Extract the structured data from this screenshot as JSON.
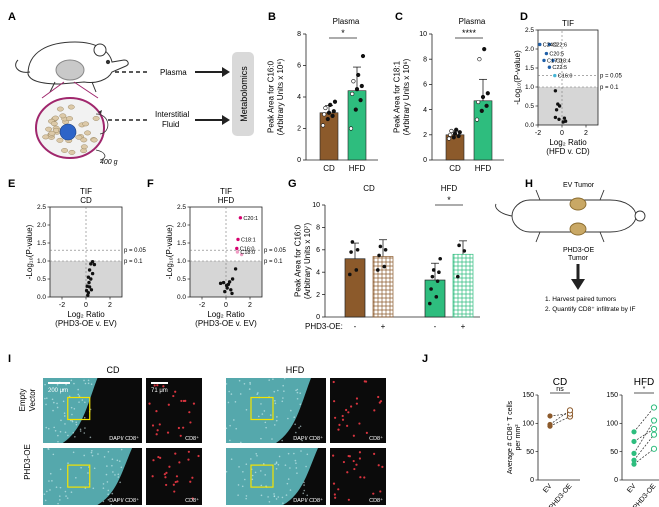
{
  "panel_letters": [
    "A",
    "B",
    "C",
    "D",
    "E",
    "F",
    "G",
    "H",
    "I",
    "J"
  ],
  "colors": {
    "cd": "#8c5a2b",
    "hfd": "#2ebd7e",
    "grey": "#d6d6d6",
    "magenta": "#d6006e",
    "blue": "#1f5fa8",
    "cyan": "#46b5d6",
    "red": "#d8343f",
    "tissue": "#63c4c9"
  },
  "panel_a": {
    "plasma": "Plasma",
    "interstitial": "Interstitial\nFluid",
    "spin": "400 g",
    "metabolomics": "Metabolomics"
  },
  "panel_h": {
    "ev_tumor": "EV Tumor",
    "phd3_tumor": "PHD3-OE\nTumor",
    "step1": "1. Harvest paired tumors",
    "step2": "2. Quantify CD8⁺ infiltrate by IF"
  },
  "panel_i": {
    "col_cd": "CD",
    "col_hfd": "HFD",
    "row1": "Empty\nVector",
    "row2": "PHD3-OE",
    "scale1": "200 μm",
    "scale2": "71 μm",
    "label_merge": "DAPI/ CD8⁺",
    "label_cd8": "CD8⁺"
  },
  "chart_data": [
    {
      "panel": "B",
      "type": "bar",
      "title": "Plasma",
      "ylabel": "Peak Area for C16:0\n(Arbitrary Units x 10⁶)",
      "categories": [
        "CD",
        "HFD"
      ],
      "values": [
        3.0,
        4.4
      ],
      "errors": [
        0.45,
        1.5
      ],
      "ylim": [
        0,
        8
      ],
      "yticks": [
        0,
        2,
        4,
        6,
        8
      ],
      "significance": "*",
      "points": [
        [
          2.2,
          2.6,
          2.8,
          2.9,
          3.0,
          3.1,
          3.3,
          3.5,
          3.7
        ],
        [
          2.0,
          3.2,
          3.8,
          4.2,
          4.5,
          4.7,
          5.0,
          5.4,
          6.6
        ]
      ]
    },
    {
      "panel": "C",
      "type": "bar",
      "title": "Plasma",
      "ylabel": "Peak Area for C18:1\n(Arbitrary Units x 10⁶)",
      "categories": [
        "CD",
        "HFD"
      ],
      "values": [
        2.0,
        4.7
      ],
      "errors": [
        0.3,
        1.7
      ],
      "ylim": [
        0,
        10
      ],
      "yticks": [
        0,
        2,
        4,
        6,
        8,
        10
      ],
      "significance": "****",
      "points": [
        [
          1.7,
          1.8,
          1.9,
          2.0,
          2.1,
          2.2,
          2.3,
          2.4
        ],
        [
          3.2,
          3.9,
          4.3,
          4.6,
          5.0,
          5.3,
          8.0,
          8.8
        ]
      ]
    },
    {
      "panel": "D",
      "type": "scatter",
      "title": "TIF",
      "ylabel": "-Log₁₀(P-value)",
      "xlabel": "Log₂ Ratio\n(HFD v. CD)",
      "xlim": [
        -2,
        3
      ],
      "ylim": [
        0,
        2.5
      ],
      "xticks": [
        -2,
        0,
        2
      ],
      "yticks": [
        0,
        0.5,
        1.0,
        1.5,
        2.0,
        2.5
      ],
      "p_lines": [
        {
          "y": 1.3,
          "label": "p = 0.05"
        },
        {
          "y": 1.0,
          "label": "p = 0.1"
        }
      ],
      "labels": [
        "C24:0",
        "C22:6",
        "C20:5",
        "C17:0",
        "C18:4",
        "C22:5",
        "C16:0"
      ],
      "points": [
        [
          -1.85,
          2.12
        ],
        [
          -1.05,
          2.12
        ],
        [
          -1.3,
          1.88
        ],
        [
          -1.5,
          1.7
        ],
        [
          -0.75,
          1.7
        ],
        [
          -1.05,
          1.52
        ],
        [
          -0.6,
          1.3
        ],
        [
          -0.55,
          0.9
        ],
        [
          -0.35,
          0.55
        ],
        [
          -0.45,
          0.4
        ],
        [
          -0.2,
          0.5
        ],
        [
          -0.55,
          0.2
        ],
        [
          -0.25,
          0.15
        ],
        [
          0.1,
          0.08
        ],
        [
          0.2,
          0.18
        ],
        [
          0.3,
          0.1
        ]
      ]
    },
    {
      "panel": "E",
      "type": "scatter",
      "title": "TIF\nCD",
      "ylabel": "-Log₁₀(P-value)",
      "xlabel": "Log₂ Ratio\n(PHD3-OE v. EV)",
      "xlim": [
        -3,
        3
      ],
      "ylim": [
        0,
        2.5
      ],
      "xticks": [
        -2,
        0,
        2
      ],
      "yticks": [
        0,
        0.5,
        1.0,
        1.5,
        2.0,
        2.5
      ],
      "p_lines": [
        {
          "y": 1.3,
          "label": "p = 0.05"
        },
        {
          "y": 1.0,
          "label": "p = 0.1"
        }
      ],
      "points": [
        [
          0.4,
          0.92
        ],
        [
          0.55,
          0.98
        ],
        [
          0.7,
          0.9
        ],
        [
          0.3,
          0.75
        ],
        [
          0.55,
          0.65
        ],
        [
          0.2,
          0.55
        ],
        [
          0.4,
          0.5
        ],
        [
          0.25,
          0.4
        ],
        [
          0.1,
          0.3
        ],
        [
          0.3,
          0.28
        ],
        [
          0.05,
          0.18
        ],
        [
          0.2,
          0.12
        ],
        [
          0.15,
          0.05
        ],
        [
          0.45,
          0.2
        ]
      ]
    },
    {
      "panel": "F",
      "type": "scatter",
      "title": "TIF\nHFD",
      "ylabel": "-Log₁₀(P-value)",
      "xlabel": "Log₂ Ratio\n(PHD3-OE v. EV)",
      "xlim": [
        -3,
        3
      ],
      "ylim": [
        0,
        2.5
      ],
      "xticks": [
        -2,
        0,
        2
      ],
      "yticks": [
        0,
        0.5,
        1.0,
        1.5,
        2.0,
        2.5
      ],
      "p_lines": [
        {
          "y": 1.3,
          "label": "p = 0.05"
        },
        {
          "y": 1.0,
          "label": "p = 0.1"
        }
      ],
      "labels": [
        "C20:1",
        "C18:1",
        "C16:0",
        "C18:0"
      ],
      "points": [
        [
          1.2,
          2.2
        ],
        [
          1.0,
          1.6
        ],
        [
          0.9,
          1.35
        ],
        [
          0.95,
          1.25
        ],
        [
          1.3,
          1.18
        ],
        [
          0.8,
          0.78
        ],
        [
          0.55,
          0.5
        ],
        [
          0.3,
          0.42
        ],
        [
          0.2,
          0.35
        ],
        [
          0.05,
          0.32
        ],
        [
          -0.2,
          0.4
        ],
        [
          -0.45,
          0.38
        ],
        [
          0.1,
          0.25
        ],
        [
          0.4,
          0.2
        ],
        [
          -0.1,
          0.15
        ],
        [
          0.5,
          0.1
        ]
      ]
    },
    {
      "panel": "G",
      "type": "bar",
      "title_left": "CD",
      "title_right": "HFD",
      "ylabel": "Peak Area for C16:0\n(Arbitrary Units x 10⁷)",
      "xlabel": "PHD3-OE:",
      "categories": [
        "-",
        "+",
        "-",
        "+"
      ],
      "values": [
        5.2,
        5.4,
        3.3,
        5.6
      ],
      "errors": [
        1.4,
        1.5,
        1.5,
        1.2
      ],
      "ylim": [
        0,
        10
      ],
      "yticks": [
        0,
        2,
        4,
        6,
        8,
        10
      ],
      "significance": "*",
      "points": [
        [
          3.8,
          4.2,
          5.8,
          6.0,
          6.7
        ],
        [
          4.2,
          4.5,
          5.5,
          6.0,
          6.3
        ],
        [
          1.2,
          1.8,
          2.5,
          3.2,
          3.6,
          4.0,
          4.2,
          5.2
        ],
        [
          3.6,
          5.9,
          6.4
        ]
      ]
    },
    {
      "panel": "J",
      "type": "line",
      "title_left": "CD",
      "title_right": "HFD",
      "ylabel": "Average # CD8⁺ T cells\nper mm²",
      "categories": [
        "EV",
        "PHD3-OE"
      ],
      "ylim": [
        0,
        150
      ],
      "yticks": [
        0,
        50,
        100,
        150
      ],
      "sig_left": "ns",
      "sig_right": "*",
      "pairs_cd": [
        [
          95,
          112
        ],
        [
          113,
          117
        ],
        [
          98,
          123
        ]
      ],
      "pairs_hfd": [
        [
          85,
          128
        ],
        [
          68,
          90
        ],
        [
          47,
          105
        ],
        [
          35,
          80
        ],
        [
          28,
          55
        ]
      ]
    }
  ]
}
